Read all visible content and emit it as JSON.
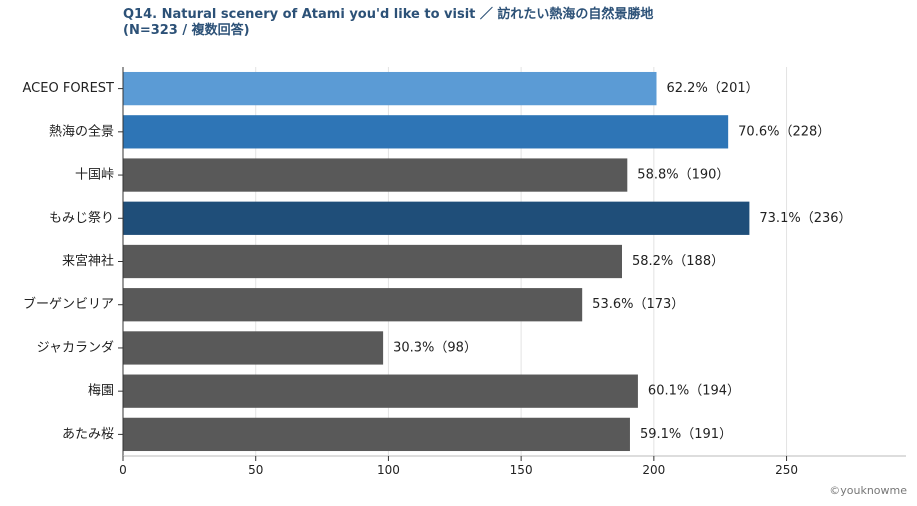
{
  "chart_data": {
    "type": "bar",
    "orientation": "horizontal",
    "title": "Q14. Natural scenery of Atami you'd like to visit ／ 訪れたい熱海の自然景勝地",
    "subtitle": "(N=323 / 複数回答)",
    "xlabel": "",
    "ylabel": "",
    "xlim": [
      0,
      295
    ],
    "xticks": [
      0,
      50,
      100,
      150,
      200,
      250
    ],
    "grid": true,
    "categories": [
      "ACEO FOREST",
      "熱海の全景",
      "十国峠",
      "もみじ祭り",
      "来宮神社",
      "ブーゲンビリア",
      "ジャカランダ",
      "梅園",
      "あたみ桜"
    ],
    "values": [
      201,
      228,
      190,
      236,
      188,
      173,
      98,
      194,
      191
    ],
    "data_labels": [
      "62.2%（201）",
      "70.6%（228）",
      "58.8%（190）",
      "73.1%（236）",
      "58.2%（188）",
      "53.6%（173）",
      "30.3%（98）",
      "60.1%（194）",
      "59.1%（191）"
    ],
    "colors": [
      "#5b9bd5",
      "#2e75b6",
      "#595959",
      "#1f4e79",
      "#595959",
      "#595959",
      "#595959",
      "#595959",
      "#595959"
    ]
  },
  "credit": "©youknowme"
}
